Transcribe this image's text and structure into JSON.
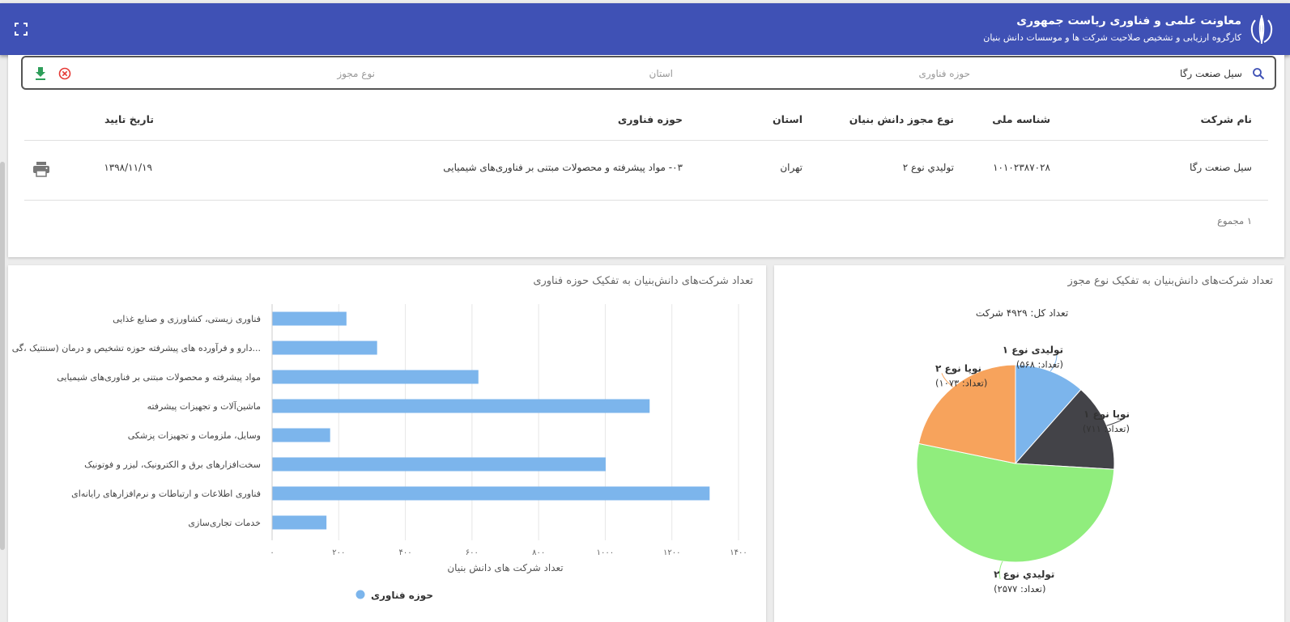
{
  "header": {
    "title": "معاونت علمی و فناوری ریاست جمهوری",
    "subtitle": "کارگروه ارزیابی و تشخیص صلاحیت شرکت ها و موسسات دانش بنیان",
    "emblem_icon": "iran-emblem-icon",
    "fullscreen_icon": "fullscreen-icon",
    "bg_color": "#3f51b5"
  },
  "search": {
    "value": "سیل صنعت رگا",
    "tech_field_placeholder": "حوزه فناوری",
    "province_placeholder": "استان",
    "license_placeholder": "نوع مجوز",
    "search_icon": "search-icon",
    "download_icon": "download-icon",
    "clear_icon": "clear-filter-icon"
  },
  "table": {
    "columns": {
      "company": "نام شرکت",
      "national_id": "شناسه ملی",
      "license_type": "نوع مجوز دانش بنیان",
      "province": "استان",
      "tech_field": "حوزه فناوری",
      "approval_date": "تاریخ تایید"
    },
    "rows": [
      {
        "company": "سیل صنعت رگا",
        "national_id": "۱۰۱۰۲۳۸۷۰۲۸",
        "license_type": "توليدي نوع ۲",
        "province": "تهران",
        "tech_field": "۰۳- مواد پیشرفته و محصولات مبتنی بر فناوری‌های شیمیایی",
        "approval_date": "۱۳۹۸/۱۱/۱۹",
        "print_icon": "print-icon"
      }
    ],
    "total": "۱ مجموع"
  },
  "bar_card": {
    "title": "تعداد شرکت‌های دانش‌بنیان به تفکیک حوزه فناوری"
  },
  "pie_card": {
    "title": "تعداد شرکت‌های دانش‌بنیان به تفکیک نوع مجوز",
    "total_label": "تعداد کل: ۴۹۲۹ شرکت"
  },
  "chart_data": [
    {
      "type": "bar",
      "orientation": "horizontal",
      "categories": [
        "فناوری زیستی، کشاورزی و صنایع غذایی",
        "دارو و فرآورده های پیشرفته حوزه تشخیص و درمان (سنتتیک ،گی...",
        "مواد پیشرفته و محصولات مبتنی بر فناوری‌های شیمیایی",
        "ماشین‌آلات و تجهیزات پیشرفته",
        "وسایل، ملزومات و تجهیزات پزشکی",
        "سخت‌افزارهای برق و الکترونیک، لیزر و فوتونیک",
        "فناوری اطلاعات و ارتباطات و نرم‌افزارهای رایانه‌ای",
        "خدمات تجاری‌سازی"
      ],
      "values": [
        222,
        314,
        618,
        1132,
        173,
        1000,
        1312,
        162
      ],
      "xlabel": "تعداد شرکت های دانش بنیان",
      "xlim": [
        0,
        1400
      ],
      "xticks": [
        0,
        200,
        400,
        600,
        800,
        1000,
        1200,
        1400
      ],
      "xtick_labels": [
        "۰",
        "۲۰۰",
        "۴۰۰",
        "۶۰۰",
        "۸۰۰",
        "۱۰۰۰",
        "۱۲۰۰",
        "۱۴۰۰"
      ],
      "grid": true,
      "legend": "bottom",
      "series": [
        {
          "name": "حوزه فناوری",
          "color": "#7cb5ec"
        }
      ]
    },
    {
      "type": "pie",
      "slices": [
        {
          "label": "تولیدی نوع ۱",
          "count_text": "(تعداد: ۵۶۸)",
          "value": 568,
          "color": "#7cb5ec"
        },
        {
          "label": "نوپا نوع ۱",
          "count_text": "(تعداد: ۷۱۱)",
          "value": 711,
          "color": "#434348"
        },
        {
          "label": "توليدي نوع ۲",
          "count_text": "(تعداد: ۲۵۷۷)",
          "value": 2577,
          "color": "#90ed7d"
        },
        {
          "label": "نوپا نوع ۲",
          "count_text": "(تعداد: ۱۰۷۳)",
          "value": 1073,
          "color": "#f7a35c"
        }
      ]
    }
  ]
}
